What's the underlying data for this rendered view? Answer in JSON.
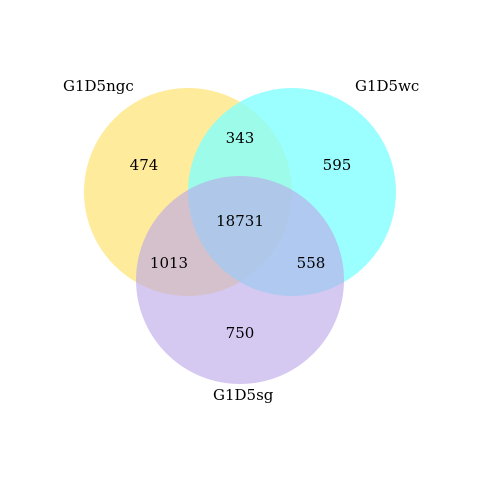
{
  "sets": [
    {
      "name": "G1D5ngc",
      "color": "#FFE680"
    },
    {
      "name": "G1D5wc",
      "color": "#80FFFF"
    },
    {
      "name": "G1D5sg",
      "color": "#BBA8E8"
    }
  ],
  "regions": {
    "ngc_only": "474",
    "wc_only": "595",
    "sg_only": "750",
    "ngc_wc": "343",
    "ngc_sg": "1013",
    "wc_sg": "558",
    "all": "18731"
  }
}
